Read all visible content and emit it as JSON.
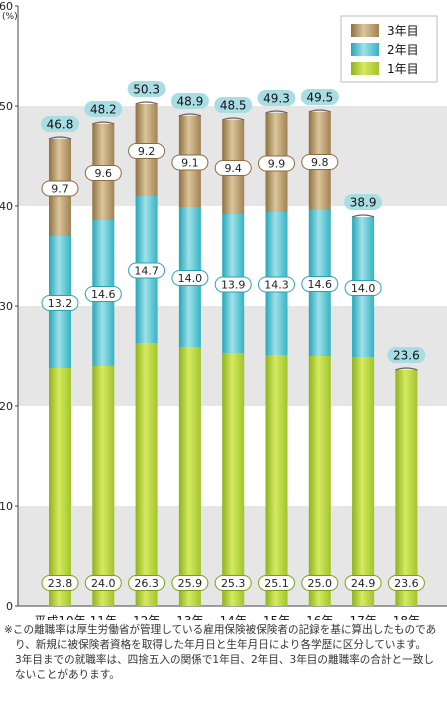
{
  "chart_data": {
    "type": "bar",
    "stacked": true,
    "y_unit": "(%)",
    "ylim": [
      0,
      60
    ],
    "y_ticks": [
      "0",
      "10",
      "20",
      "30",
      "40",
      "50",
      "60"
    ],
    "grid": "alternating horizontal bands",
    "legend_position": "top-right",
    "categories": [
      "平成10年",
      "11年",
      "12年",
      "13年",
      "14年",
      "15年",
      "16年",
      "17年",
      "18年"
    ],
    "series": [
      {
        "name": "1年目",
        "color": "#b6d334",
        "values": [
          23.8,
          24.0,
          26.3,
          25.9,
          25.3,
          25.1,
          25.0,
          24.9,
          23.6
        ],
        "labels": [
          "23.8",
          "24.0",
          "26.3",
          "25.9",
          "25.3",
          "25.1",
          "25.0",
          "24.9",
          "23.6"
        ]
      },
      {
        "name": "2年目",
        "color": "#49c0ce",
        "values": [
          13.2,
          14.6,
          14.7,
          14.0,
          13.9,
          14.3,
          14.6,
          14.0,
          null
        ],
        "labels": [
          "13.2",
          "14.6",
          "14.7",
          "14.0",
          "13.9",
          "14.3",
          "14.6",
          "14.0",
          ""
        ]
      },
      {
        "name": "3年目",
        "color": "#b39565",
        "values": [
          9.7,
          9.6,
          9.2,
          9.1,
          9.4,
          9.9,
          9.8,
          null,
          null
        ],
        "labels": [
          "9.7",
          "9.6",
          "9.2",
          "9.1",
          "9.4",
          "9.9",
          "9.8",
          "",
          ""
        ]
      }
    ],
    "totals": [
      46.8,
      48.2,
      50.3,
      48.9,
      48.5,
      49.3,
      49.5,
      38.9,
      23.6
    ],
    "total_labels": [
      "46.8",
      "48.2",
      "50.3",
      "48.9",
      "48.5",
      "49.3",
      "49.5",
      "38.9",
      "23.6"
    ]
  },
  "footnote": {
    "lines": [
      "※この離職率は厚生労働省が管理している雇用保険被保険者の記録を基に算出したものであ",
      "り、新規に被保険者資格を取得した年月日と生年月日により各学歴に区分しています。",
      "3年目までの就職率は、四捨五入の関係で1年目、2年目、3年目の離職率の合計と一致し",
      "ないことがあります。"
    ]
  }
}
